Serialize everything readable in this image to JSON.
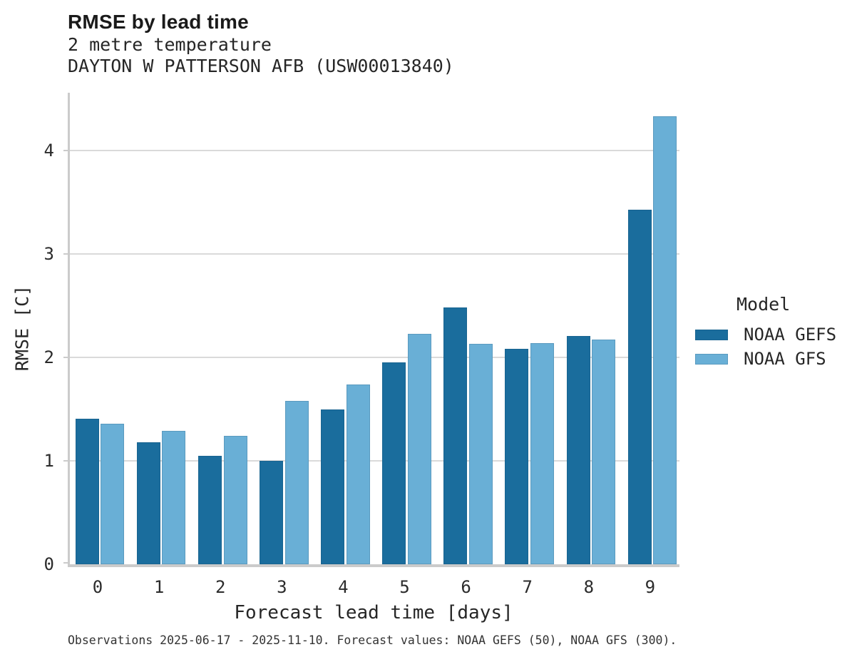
{
  "header": {
    "title": "RMSE by lead time",
    "subtitle_variable": "2 metre temperature",
    "subtitle_station": "DAYTON W PATTERSON AFB (USW00013840)"
  },
  "chart_data": {
    "type": "bar",
    "title": "RMSE by lead time",
    "subtitle": "2 metre temperature",
    "station": "DAYTON W PATTERSON AFB (USW00013840)",
    "categories": [
      "0",
      "1",
      "2",
      "3",
      "4",
      "5",
      "6",
      "7",
      "8",
      "9"
    ],
    "series": [
      {
        "name": "NOAA GEFS",
        "color": "#1A6D9D",
        "values": [
          1.41,
          1.18,
          1.05,
          1.0,
          1.5,
          1.95,
          2.48,
          2.08,
          2.21,
          3.43
        ]
      },
      {
        "name": "NOAA GFS",
        "color": "#69AFD6",
        "values": [
          1.36,
          1.29,
          1.24,
          1.58,
          1.74,
          2.23,
          2.13,
          2.14,
          2.17,
          4.33
        ]
      }
    ],
    "xlabel": "Forecast lead time [days]",
    "ylabel": "RMSE [C]",
    "ylim": [
      0,
      4.56
    ],
    "yticks": [
      0,
      1,
      2,
      3,
      4
    ],
    "grid": "horizontal",
    "legend_title": "Model",
    "legend_position": "right"
  },
  "legend": {
    "title": "Model",
    "items": [
      {
        "label": "NOAA GEFS",
        "color": "#1A6D9D"
      },
      {
        "label": "NOAA GFS",
        "color": "#69AFD6"
      }
    ]
  },
  "footer": {
    "note": "Observations 2025-06-17 - 2025-11-10. Forecast values: NOAA GEFS (50), NOAA GFS (300)."
  },
  "palette": {
    "grid": "#DADADA",
    "spine": "#CBCBCB",
    "text": "#262626"
  }
}
